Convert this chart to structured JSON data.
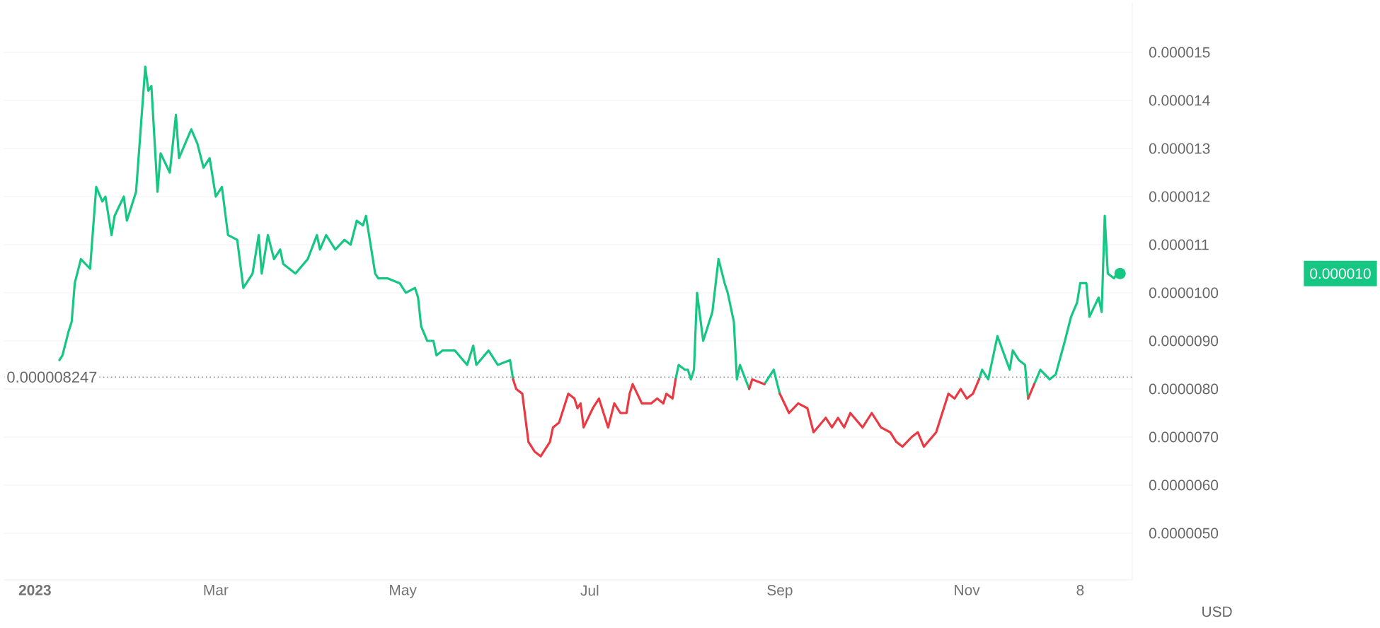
{
  "chart_data": {
    "type": "line",
    "series": [
      {
        "color": "#16c784",
        "x": [
          "2023-01-09",
          "2023-01-10",
          "2023-01-12",
          "2023-01-13",
          "2023-01-14",
          "2023-01-16",
          "2023-01-19",
          "2023-01-21",
          "2023-01-23",
          "2023-01-24",
          "2023-01-26",
          "2023-01-27",
          "2023-01-30",
          "2023-01-31",
          "2023-02-03",
          "2023-02-06",
          "2023-02-07",
          "2023-02-08",
          "2023-02-10",
          "2023-02-11",
          "2023-02-14",
          "2023-02-16",
          "2023-02-17",
          "2023-02-21",
          "2023-02-23",
          "2023-02-25",
          "2023-02-27",
          "2023-03-01",
          "2023-03-03",
          "2023-03-05",
          "2023-03-08",
          "2023-03-10",
          "2023-03-13",
          "2023-03-15",
          "2023-03-16",
          "2023-03-18",
          "2023-03-20",
          "2023-03-22",
          "2023-03-23",
          "2023-03-27",
          "2023-03-31",
          "2023-04-03",
          "2023-04-04",
          "2023-04-06",
          "2023-04-09",
          "2023-04-12",
          "2023-04-14",
          "2023-04-16",
          "2023-04-18",
          "2023-04-19",
          "2023-04-22",
          "2023-04-23",
          "2023-04-26",
          "2023-04-30",
          "2023-05-02",
          "2023-05-05",
          "2023-05-06",
          "2023-05-07",
          "2023-05-09",
          "2023-05-11",
          "2023-05-12",
          "2023-05-14",
          "2023-05-18",
          "2023-05-22",
          "2023-05-24",
          "2023-05-25",
          "2023-05-29",
          "2023-06-01",
          "2023-06-05",
          "2023-06-06"
        ],
        "values": [
          8.6e-06,
          8.7e-06,
          9.2e-06,
          9.4e-06,
          1.02e-05,
          1.07e-05,
          1.05e-05,
          1.22e-05,
          1.19e-05,
          1.2e-05,
          1.12e-05,
          1.16e-05,
          1.2e-05,
          1.15e-05,
          1.21e-05,
          1.47e-05,
          1.42e-05,
          1.43e-05,
          1.21e-05,
          1.29e-05,
          1.25e-05,
          1.37e-05,
          1.28e-05,
          1.34e-05,
          1.31e-05,
          1.26e-05,
          1.28e-05,
          1.2e-05,
          1.22e-05,
          1.12e-05,
          1.11e-05,
          1.01e-05,
          1.04e-05,
          1.12e-05,
          1.04e-05,
          1.12e-05,
          1.07e-05,
          1.09e-05,
          1.06e-05,
          1.04e-05,
          1.07e-05,
          1.12e-05,
          1.09e-05,
          1.12e-05,
          1.09e-05,
          1.11e-05,
          1.1e-05,
          1.15e-05,
          1.14e-05,
          1.16e-05,
          1.04e-05,
          1.03e-05,
          1.03e-05,
          1.02e-05,
          1e-05,
          1.01e-05,
          9.9e-06,
          9.3e-06,
          9e-06,
          9e-06,
          8.7e-06,
          8.8e-06,
          8.8e-06,
          8.5e-06,
          8.9e-06,
          8.5e-06,
          8.8e-06,
          8.5e-06,
          8.6e-06,
          8.2e-06
        ]
      },
      {
        "color": "#16c784",
        "x": [
          "2023-07-29",
          "2023-07-30",
          "2023-08-01",
          "2023-08-02",
          "2023-08-03",
          "2023-08-04",
          "2023-08-05",
          "2023-08-07",
          "2023-08-10",
          "2023-08-12",
          "2023-08-14",
          "2023-08-15",
          "2023-08-17",
          "2023-08-18",
          "2023-08-19",
          "2023-08-22"
        ],
        "values": [
          8.2e-06,
          8.5e-06,
          8.4e-06,
          8.4e-06,
          8.2e-06,
          8.4e-06,
          1e-05,
          9e-06,
          9.6e-06,
          1.07e-05,
          1.02e-05,
          1e-05,
          9.4e-06,
          8.2e-06,
          8.5e-06,
          8e-06
        ]
      },
      {
        "color": "#16c784",
        "x": [
          "2023-08-27",
          "2023-08-30",
          "2023-09-01"
        ],
        "values": [
          8.1e-06,
          8.4e-06,
          7.9e-06
        ]
      },
      {
        "color": "#16c784",
        "x": [
          "2023-11-05",
          "2023-11-06",
          "2023-11-08",
          "2023-11-11",
          "2023-11-15",
          "2023-11-16",
          "2023-11-18",
          "2023-11-20",
          "2023-11-21"
        ],
        "values": [
          8.2e-06,
          8.4e-06,
          8.2e-06,
          9.1e-06,
          8.4e-06,
          8.8e-06,
          8.6e-06,
          8.5e-06,
          7.8e-06
        ]
      },
      {
        "color": "#16c784",
        "x": [
          "2023-11-23",
          "2023-11-25",
          "2023-11-28",
          "2023-11-30",
          "2023-12-03",
          "2023-12-05",
          "2023-12-07",
          "2023-12-08",
          "2023-12-10",
          "2023-12-11",
          "2023-12-14",
          "2023-12-15",
          "2023-12-16",
          "2023-12-17",
          "2023-12-19",
          "2023-12-20",
          "2023-12-21"
        ],
        "values": [
          8.1e-06,
          8.4e-06,
          8.2e-06,
          8.3e-06,
          9e-06,
          9.5e-06,
          9.8e-06,
          1.02e-05,
          1.02e-05,
          9.5e-06,
          9.9e-06,
          9.6e-06,
          1.16e-05,
          1.04e-05,
          1.03e-05,
          1.04e-05,
          1.04e-05
        ]
      },
      {
        "color": "#ea3943",
        "x": [
          "2023-06-06",
          "2023-06-07",
          "2023-06-09",
          "2023-06-11",
          "2023-06-13",
          "2023-06-15",
          "2023-06-18",
          "2023-06-19",
          "2023-06-21",
          "2023-06-24",
          "2023-06-26",
          "2023-06-27",
          "2023-06-28",
          "2023-06-29",
          "2023-07-02",
          "2023-07-04",
          "2023-07-07",
          "2023-07-09",
          "2023-07-11",
          "2023-07-13",
          "2023-07-14",
          "2023-07-15",
          "2023-07-18",
          "2023-07-21",
          "2023-07-23",
          "2023-07-25",
          "2023-07-26",
          "2023-07-28",
          "2023-07-29"
        ],
        "values": [
          8.2e-06,
          8e-06,
          7.9e-06,
          6.9e-06,
          6.7e-06,
          6.6e-06,
          6.9e-06,
          7.2e-06,
          7.3e-06,
          7.9e-06,
          7.8e-06,
          7.6e-06,
          7.7e-06,
          7.2e-06,
          7.6e-06,
          7.8e-06,
          7.2e-06,
          7.7e-06,
          7.5e-06,
          7.5e-06,
          7.9e-06,
          8.1e-06,
          7.7e-06,
          7.7e-06,
          7.8e-06,
          7.7e-06,
          7.9e-06,
          7.8e-06,
          8.2e-06
        ]
      },
      {
        "color": "#ea3943",
        "x": [
          "2023-08-22",
          "2023-08-23",
          "2023-08-27"
        ],
        "values": [
          8e-06,
          8.2e-06,
          8.1e-06
        ]
      },
      {
        "color": "#ea3943",
        "x": [
          "2023-09-01",
          "2023-09-04",
          "2023-09-07",
          "2023-09-10",
          "2023-09-12",
          "2023-09-16",
          "2023-09-18",
          "2023-09-20",
          "2023-09-22",
          "2023-09-24",
          "2023-09-28",
          "2023-10-01",
          "2023-10-04",
          "2023-10-07",
          "2023-10-09",
          "2023-10-11",
          "2023-10-14",
          "2023-10-16",
          "2023-10-18",
          "2023-10-22",
          "2023-10-24",
          "2023-10-26",
          "2023-10-28",
          "2023-10-30",
          "2023-11-01",
          "2023-11-03",
          "2023-11-05"
        ],
        "values": [
          7.9e-06,
          7.5e-06,
          7.7e-06,
          7.6e-06,
          7.1e-06,
          7.4e-06,
          7.2e-06,
          7.4e-06,
          7.2e-06,
          7.5e-06,
          7.2e-06,
          7.5e-06,
          7.2e-06,
          7.1e-06,
          6.9e-06,
          6.8e-06,
          7e-06,
          7.1e-06,
          6.8e-06,
          7.1e-06,
          7.5e-06,
          7.9e-06,
          7.8e-06,
          8e-06,
          7.8e-06,
          7.9e-06,
          8.2e-06
        ]
      },
      {
        "color": "#ea3943",
        "x": [
          "2023-11-21",
          "2023-11-23"
        ],
        "values": [
          7.8e-06,
          8.1e-06
        ]
      }
    ],
    "xlim": [
      "2022-12-22",
      "2023-12-25"
    ],
    "xticks": [
      {
        "value": "2023-01-01",
        "label": "2023"
      },
      {
        "value": "2023-03-01",
        "label": "Mar"
      },
      {
        "value": "2023-05-01",
        "label": "May"
      },
      {
        "value": "2023-07-01",
        "label": "Jul"
      },
      {
        "value": "2023-09-01",
        "label": "Sep"
      },
      {
        "value": "2023-11-01",
        "label": "Nov"
      },
      {
        "value": "2023-12-08",
        "label": "8"
      }
    ],
    "ylim": [
      4.03e-06,
      1.603e-05
    ],
    "yticks": [
      {
        "value": 5e-06,
        "label": "0.0000050"
      },
      {
        "value": 6e-06,
        "label": "0.0000060"
      },
      {
        "value": 7e-06,
        "label": "0.0000070"
      },
      {
        "value": 8e-06,
        "label": "0.0000080"
      },
      {
        "value": 9e-06,
        "label": "0.0000090"
      },
      {
        "value": 1e-05,
        "label": "0.0000100"
      },
      {
        "value": 1.1e-05,
        "label": "0.000011"
      },
      {
        "value": 1.2e-05,
        "label": "0.000012"
      },
      {
        "value": 1.3e-05,
        "label": "0.000013"
      },
      {
        "value": 1.4e-05,
        "label": "0.000014"
      },
      {
        "value": 1.5e-05,
        "label": "0.000015"
      }
    ],
    "ylabel": "USD",
    "grid": "y",
    "marker": "none",
    "line_style": "solid",
    "ref_lines": [
      {
        "axis": "y",
        "value": 8.247e-06,
        "label": "0.000008247",
        "color": "#858ca2",
        "line_style": "dotted"
      }
    ],
    "annotations": [
      "0.000010"
    ]
  }
}
